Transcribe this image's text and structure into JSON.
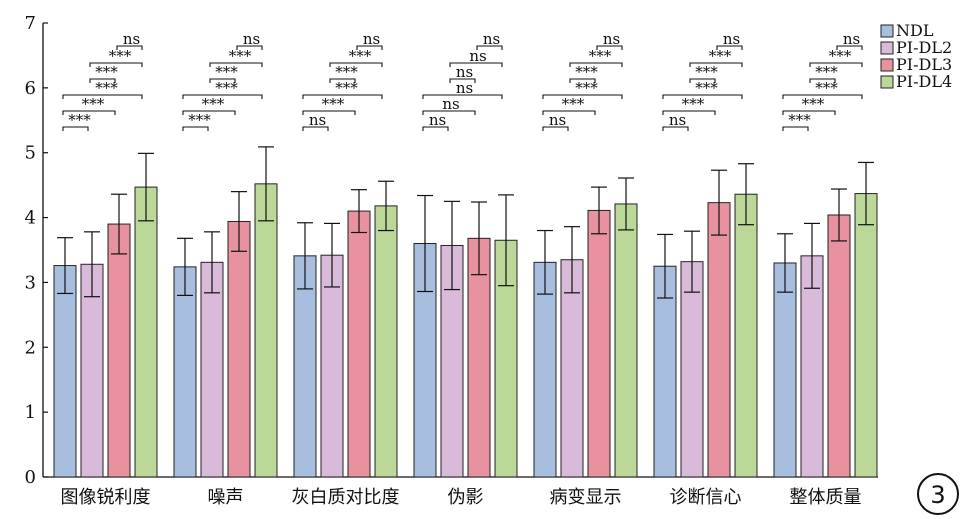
{
  "chart_data": {
    "type": "bar",
    "categories": [
      "图像锐利度",
      "噪声",
      "灰白质对比度",
      "伪影",
      "病变显示",
      "诊断信心",
      "整体质量"
    ],
    "series": [
      {
        "name": "NDL",
        "color": "#a8bedf",
        "values": [
          3.26,
          3.24,
          3.41,
          3.6,
          3.31,
          3.25,
          3.3
        ],
        "errors": [
          0.43,
          0.44,
          0.51,
          0.74,
          0.49,
          0.49,
          0.45
        ]
      },
      {
        "name": "PI-DL2",
        "color": "#d9bbd9",
        "values": [
          3.28,
          3.31,
          3.42,
          3.57,
          3.35,
          3.32,
          3.41
        ],
        "errors": [
          0.5,
          0.47,
          0.49,
          0.68,
          0.51,
          0.47,
          0.5
        ]
      },
      {
        "name": "PI-DL3",
        "color": "#e8929f",
        "values": [
          3.9,
          3.94,
          4.1,
          3.68,
          4.11,
          4.23,
          4.04
        ],
        "errors": [
          0.46,
          0.46,
          0.33,
          0.56,
          0.36,
          0.5,
          0.4
        ]
      },
      {
        "name": "PI-DL4",
        "color": "#bcd898",
        "values": [
          4.47,
          4.52,
          4.18,
          3.65,
          4.21,
          4.36,
          4.37
        ],
        "errors": [
          0.52,
          0.57,
          0.38,
          0.7,
          0.4,
          0.47,
          0.48
        ]
      }
    ],
    "ylim": [
      0,
      7
    ],
    "yticks": [
      "0",
      "1",
      "2",
      "3",
      "4",
      "5",
      "6",
      "7"
    ],
    "significance": [
      [
        "***",
        "***",
        "***",
        "***",
        "***",
        "ns"
      ],
      [
        "***",
        "***",
        "***",
        "***",
        "***",
        "ns"
      ],
      [
        "ns",
        "***",
        "***",
        "***",
        "***",
        "ns"
      ],
      [
        "ns",
        "ns",
        "ns",
        "ns",
        "ns",
        "ns"
      ],
      [
        "ns",
        "***",
        "***",
        "***",
        "***",
        "ns"
      ],
      [
        "ns",
        "***",
        "***",
        "***",
        "***",
        "ns"
      ],
      [
        "***",
        "***",
        "***",
        "***",
        "***",
        "ns"
      ]
    ],
    "legend_position": "top-right",
    "grid": false
  },
  "badge": "3"
}
